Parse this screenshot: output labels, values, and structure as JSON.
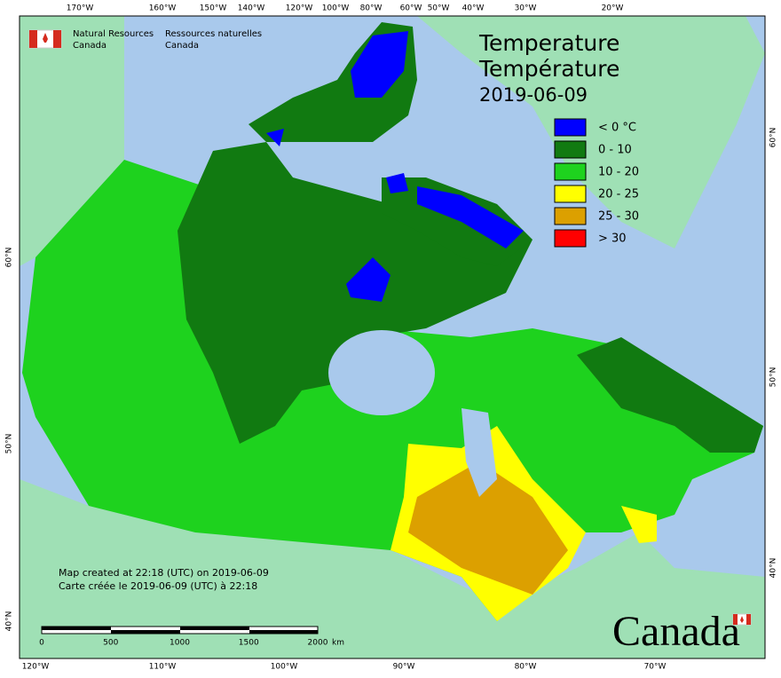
{
  "header": {
    "department_en": [
      "Natural Resources",
      "Canada"
    ],
    "department_fr": [
      "Ressources naturelles",
      "Canada"
    ]
  },
  "title": {
    "lines": [
      "Temperature",
      "Température"
    ],
    "date": "2019-06-09"
  },
  "legend": [
    {
      "label": "< 0 °C",
      "color": "#0000ff"
    },
    {
      "label": "0 - 10",
      "color": "#117a11"
    },
    {
      "label": "10 - 20",
      "color": "#1ed21e"
    },
    {
      "label": "20 - 25",
      "color": "#ffff00"
    },
    {
      "label": "25 - 30",
      "color": "#dca000"
    },
    {
      "label": "> 30",
      "color": "#ff0000"
    }
  ],
  "axis_labels": {
    "top": [
      "170°W",
      "160°W",
      "150°W",
      "140°W",
      "120°W",
      "100°W",
      "80°W",
      "60°W",
      "50°W",
      "40°W",
      "30°W",
      "20°W"
    ],
    "bottom": [
      "120°W",
      "110°W",
      "100°W",
      "90°W",
      "80°W",
      "70°W"
    ],
    "left": [
      "60°N",
      "50°N",
      "40°N"
    ],
    "right": [
      "60°N",
      "50°N",
      "40°N"
    ]
  },
  "footer": [
    "Map created at 22:18 (UTC) on 2019-06-09",
    "Carte créée le 2019-06-09 (UTC) à 22:18"
  ],
  "scale_bar": {
    "labels": [
      "0",
      "500",
      "1000",
      "1500",
      "2000"
    ],
    "unit": "km"
  },
  "wordmark": "Canada"
}
